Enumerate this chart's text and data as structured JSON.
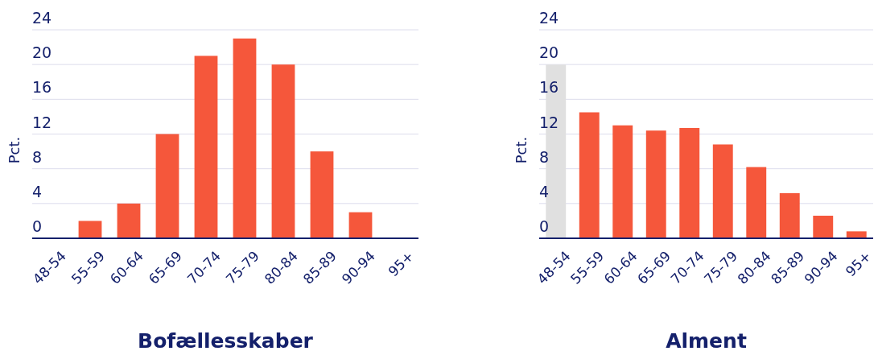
{
  "chart_data": [
    {
      "type": "bar",
      "title": "Bofællesskaber",
      "ylabel": "Pct.",
      "categories": [
        "48-54",
        "55-59",
        "60-64",
        "65-69",
        "70-74",
        "75-79",
        "80-84",
        "85-89",
        "90-94",
        "95+"
      ],
      "values": [
        0,
        2,
        4,
        12,
        21,
        23,
        20,
        10,
        3,
        0
      ],
      "color": "#f5573b",
      "ylim": [
        0,
        24
      ],
      "yticks": [
        0,
        4,
        8,
        12,
        16,
        20,
        24
      ],
      "grid": "y"
    },
    {
      "type": "bar",
      "title": "Alment",
      "ylabel": "Pct.",
      "categories": [
        "48-54",
        "55-59",
        "60-64",
        "65-69",
        "70-74",
        "75-79",
        "80-84",
        "85-89",
        "90-94",
        "95+"
      ],
      "values": [
        20,
        14.5,
        13,
        12.4,
        12.7,
        10.8,
        8.2,
        5.2,
        2.6,
        0.8
      ],
      "colors": [
        "#e0e0e0",
        "#f5573b",
        "#f5573b",
        "#f5573b",
        "#f5573b",
        "#f5573b",
        "#f5573b",
        "#f5573b",
        "#f5573b",
        "#f5573b"
      ],
      "ylim": [
        0,
        24
      ],
      "yticks": [
        0,
        4,
        8,
        12,
        16,
        20,
        24
      ],
      "grid": "y"
    }
  ]
}
